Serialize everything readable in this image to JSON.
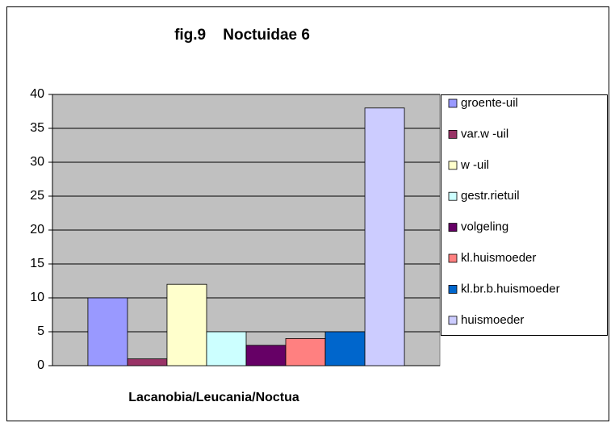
{
  "chart_data": {
    "type": "bar",
    "title": "fig.9    Noctuidae 6",
    "x_label": "Lacanobia/Leucania/Noctua",
    "categories": [
      "Lacanobia/Leucania/Noctua"
    ],
    "series": [
      {
        "name": "groente-uil",
        "color": "#9999ff",
        "values": [
          10
        ]
      },
      {
        "name": "var.w -uil",
        "color": "#993366",
        "values": [
          1
        ]
      },
      {
        "name": "w -uil",
        "color": "#ffffcc",
        "values": [
          12
        ]
      },
      {
        "name": "gestr.rietuil",
        "color": "#ccffff",
        "values": [
          5
        ]
      },
      {
        "name": "volgeling",
        "color": "#660066",
        "values": [
          3
        ]
      },
      {
        "name": "kl.huismoeder",
        "color": "#ff8080",
        "values": [
          4
        ]
      },
      {
        "name": "kl.br.b.huismoeder",
        "color": "#0066cc",
        "values": [
          5
        ]
      },
      {
        "name": "huismoeder",
        "color": "#ccccff",
        "values": [
          38
        ]
      }
    ],
    "ylim": [
      0,
      40
    ],
    "yticks": [
      0,
      5,
      10,
      15,
      20,
      25,
      30,
      35,
      40
    ],
    "grid": true,
    "legend": "right"
  }
}
